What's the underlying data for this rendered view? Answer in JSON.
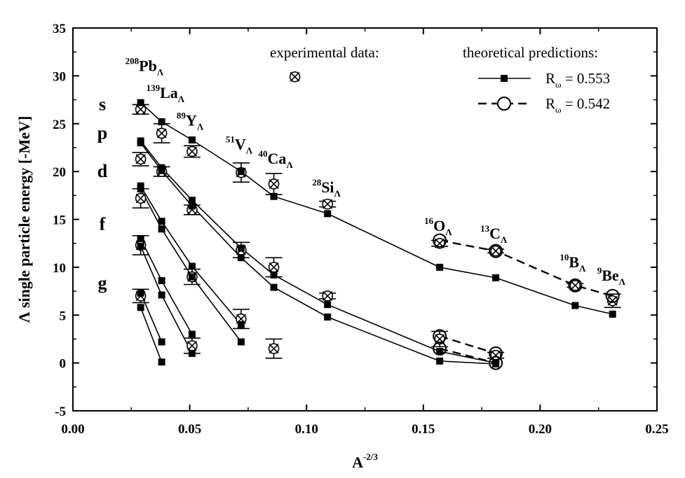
{
  "chart_data": {
    "type": "scatter",
    "title": "",
    "xlabel": "A",
    "xlabel_sup": "-2/3",
    "ylabel": "Λ single particle energy  [-MeV]",
    "xlim": [
      0.0,
      0.25
    ],
    "ylim": [
      -5,
      35
    ],
    "xticks": [
      0.0,
      0.05,
      0.1,
      0.15,
      0.2,
      0.25
    ],
    "xtick_labels": [
      "0.00",
      "0.05",
      "0.10",
      "0.15",
      "0.20",
      "0.25"
    ],
    "yticks": [
      -5,
      0,
      5,
      10,
      15,
      20,
      25,
      30,
      35
    ],
    "ytick_labels": [
      "-5",
      "0",
      "5",
      "10",
      "15",
      "20",
      "25",
      "30",
      "35"
    ],
    "legend": {
      "experimental_title": "experimental data:",
      "theoretical_title": "theoretical predictions:",
      "entries": [
        {
          "symbol": "R",
          "sub": "ω",
          "eq": "= ",
          "value": "0.553",
          "marker": "filled-square",
          "line": "solid"
        },
        {
          "symbol": "R",
          "sub": "ω",
          "eq": "= ",
          "value": "0.542",
          "marker": "open-circle",
          "line": "dashed"
        }
      ]
    },
    "shell_labels": [
      {
        "text": "s",
        "y": 27
      },
      {
        "text": "p",
        "y": 24
      },
      {
        "text": "d",
        "y": 20
      },
      {
        "text": "f",
        "y": 14.5
      },
      {
        "text": "g",
        "y": 8.3
      }
    ],
    "nucleus_labels": [
      {
        "mass": "208",
        "element": "Pb",
        "x": 0.029,
        "y": 30.5
      },
      {
        "mass": "139",
        "element": "La",
        "x": 0.038,
        "y": 27.7
      },
      {
        "mass": "89",
        "element": "Y",
        "x": 0.051,
        "y": 24.8
      },
      {
        "mass": "51",
        "element": "V",
        "x": 0.072,
        "y": 22.3
      },
      {
        "mass": "40",
        "element": "Ca",
        "x": 0.086,
        "y": 20.8
      },
      {
        "mass": "28",
        "element": "Si",
        "x": 0.109,
        "y": 17.8
      },
      {
        "mass": "16",
        "element": "O",
        "x": 0.157,
        "y": 13.8
      },
      {
        "mass": "13",
        "element": "C",
        "x": 0.181,
        "y": 13.0
      },
      {
        "mass": "10",
        "element": "B",
        "x": 0.215,
        "y": 10.0
      },
      {
        "mass": "9",
        "element": "Be",
        "x": 0.231,
        "y": 8.6
      }
    ],
    "series": [
      {
        "name": "R_ω = 0.553, s-shell",
        "marker": "filled-square",
        "line": "solid",
        "x": [
          0.029,
          0.038,
          0.051,
          0.072,
          0.086,
          0.109,
          0.157,
          0.181,
          0.215,
          0.231
        ],
        "y": [
          27.2,
          25.2,
          23.3,
          20.0,
          17.4,
          15.6,
          10.0,
          8.9,
          6.0,
          5.1
        ]
      },
      {
        "name": "R_ω = 0.553, p-shell",
        "marker": "filled-square",
        "line": "solid",
        "x": [
          0.029,
          0.038,
          0.051,
          0.072,
          0.086,
          0.109,
          0.157,
          0.181
        ],
        "y": [
          23.2,
          20.4,
          17.0,
          12.0,
          9.2,
          6.1,
          1.2,
          0.0
        ]
      },
      {
        "name": "R_ω = 0.553, p-shell lower branch",
        "marker": "filled-square",
        "line": "solid",
        "x": [
          0.029,
          0.038,
          0.051,
          0.072,
          0.086,
          0.109,
          0.157,
          0.181
        ],
        "y": [
          23.0,
          20.1,
          16.4,
          11.0,
          7.9,
          4.8,
          0.2,
          -0.1
        ]
      },
      {
        "name": "R_ω = 0.553, d-shell",
        "marker": "filled-square",
        "line": "solid",
        "x": [
          0.029,
          0.038,
          0.051,
          0.072
        ],
        "y": [
          18.5,
          14.8,
          10.1,
          4.0
        ]
      },
      {
        "name": "R_ω = 0.553, d-shell lower branch",
        "marker": "filled-square",
        "line": "solid",
        "x": [
          0.029,
          0.038,
          0.051,
          0.072
        ],
        "y": [
          18.2,
          14.0,
          9.0,
          2.2
        ]
      },
      {
        "name": "R_ω = 0.553, f-shell",
        "marker": "filled-square",
        "line": "solid",
        "x": [
          0.029,
          0.038,
          0.051
        ],
        "y": [
          13.0,
          8.6,
          3.0
        ]
      },
      {
        "name": "R_ω = 0.553, f-shell lower branch",
        "marker": "filled-square",
        "line": "solid",
        "x": [
          0.029,
          0.038,
          0.051
        ],
        "y": [
          12.2,
          7.1,
          1.0
        ]
      },
      {
        "name": "R_ω = 0.553, g-shell",
        "marker": "filled-square",
        "line": "solid",
        "x": [
          0.029,
          0.038
        ],
        "y": [
          7.3,
          2.2
        ]
      },
      {
        "name": "R_ω = 0.553, g-shell lower branch",
        "marker": "filled-square",
        "line": "solid",
        "x": [
          0.029,
          0.038
        ],
        "y": [
          5.8,
          0.1
        ]
      },
      {
        "name": "R_ω = 0.542, s-shell",
        "marker": "open-circle",
        "line": "dashed",
        "x": [
          0.157,
          0.181,
          0.215,
          0.231
        ],
        "y": [
          12.8,
          11.7,
          8.1,
          7.0
        ]
      },
      {
        "name": "R_ω = 0.542, p-shell",
        "marker": "open-circle",
        "line": "dashed",
        "x": [
          0.157,
          0.181
        ],
        "y": [
          2.8,
          1.0
        ]
      },
      {
        "name": "R_ω = 0.542, p-shell lower branch",
        "marker": "open-circle",
        "line": "dashed",
        "x": [
          0.157,
          0.181
        ],
        "y": [
          1.5,
          0.0
        ]
      }
    ],
    "experimental": [
      {
        "x": 0.029,
        "y": 26.5,
        "err": 0.5
      },
      {
        "x": 0.029,
        "y": 21.3,
        "err": 0.7
      },
      {
        "x": 0.029,
        "y": 17.2,
        "err": 1.0
      },
      {
        "x": 0.029,
        "y": 12.3,
        "err": 1.0
      },
      {
        "x": 0.029,
        "y": 7.0,
        "err": 0.7
      },
      {
        "x": 0.038,
        "y": 24.0,
        "err": 1.0
      },
      {
        "x": 0.038,
        "y": 20.0,
        "err": 0.5
      },
      {
        "x": 0.051,
        "y": 22.1,
        "err": 0.6
      },
      {
        "x": 0.051,
        "y": 16.0,
        "err": 0.5
      },
      {
        "x": 0.051,
        "y": 9.0,
        "err": 0.8
      },
      {
        "x": 0.051,
        "y": 1.8,
        "err": 0.8
      },
      {
        "x": 0.072,
        "y": 19.9,
        "err": 1.0
      },
      {
        "x": 0.072,
        "y": 11.8,
        "err": 0.8
      },
      {
        "x": 0.072,
        "y": 4.6,
        "err": 1.0
      },
      {
        "x": 0.086,
        "y": 18.7,
        "err": 1.1
      },
      {
        "x": 0.086,
        "y": 10.0,
        "err": 1.0
      },
      {
        "x": 0.086,
        "y": 1.5,
        "err": 1.0
      },
      {
        "x": 0.109,
        "y": 16.6,
        "err": 0.3
      },
      {
        "x": 0.109,
        "y": 7.0,
        "err": 0.3
      },
      {
        "x": 0.157,
        "y": 12.5,
        "err": 0.3
      },
      {
        "x": 0.157,
        "y": 2.5,
        "err": 0.8
      },
      {
        "x": 0.181,
        "y": 11.7,
        "err": 0.2
      },
      {
        "x": 0.181,
        "y": 0.8,
        "err": 0.3
      },
      {
        "x": 0.215,
        "y": 8.1,
        "err": 0.2
      },
      {
        "x": 0.231,
        "y": 6.5,
        "err": 0.7
      }
    ],
    "legend_exp_marker": {
      "x": 0.095,
      "y": 29.9
    }
  }
}
